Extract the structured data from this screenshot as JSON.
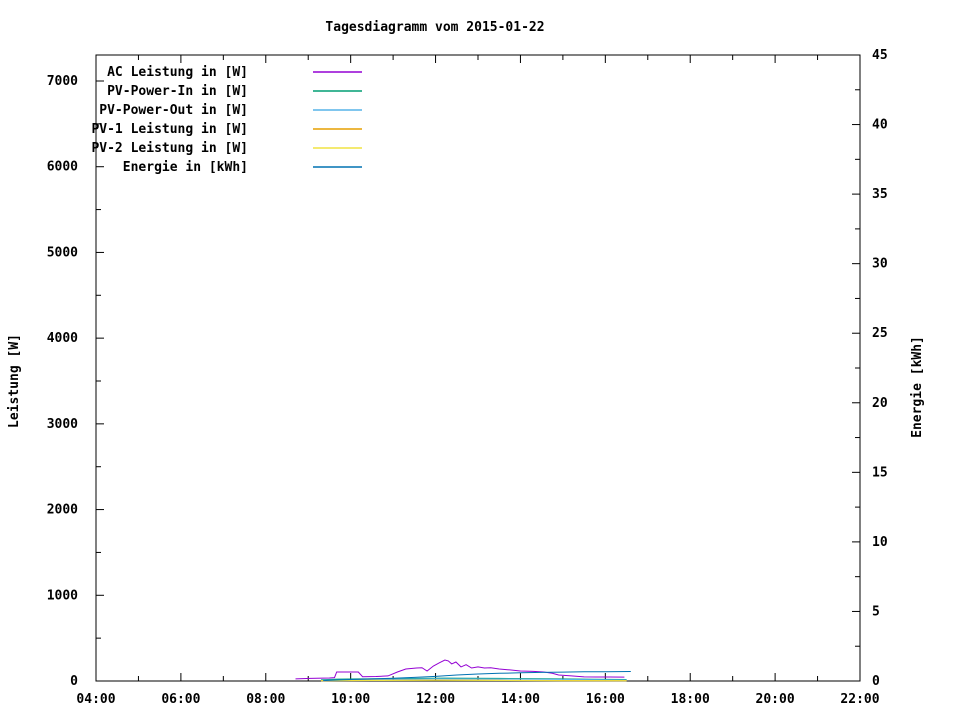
{
  "title": "Tagesdiagramm vom 2015-01-22",
  "axes": {
    "y_left_label": "Leistung [W]",
    "y_right_label": "Energie [kWh]",
    "x_tick_labels": [
      "04:00",
      "06:00",
      "08:00",
      "10:00",
      "12:00",
      "14:00",
      "16:00",
      "18:00",
      "20:00",
      "22:00"
    ],
    "y_left_tick_labels": [
      "0",
      "1000",
      "2000",
      "3000",
      "4000",
      "5000",
      "6000",
      "7000"
    ],
    "y_right_tick_labels": [
      "0",
      "5",
      "10",
      "15",
      "20",
      "25",
      "30",
      "35",
      "40",
      "45"
    ]
  },
  "legend": {
    "entries": [
      {
        "label": "AC Leistung in [W]",
        "color": "#9400D3"
      },
      {
        "label": "PV-Power-In in [W]",
        "color": "#009E73"
      },
      {
        "label": "PV-Power-Out in [W]",
        "color": "#56B4E9"
      },
      {
        "label": "PV-1 Leistung in [W]",
        "color": "#E69F00"
      },
      {
        "label": "PV-2 Leistung in [W]",
        "color": "#F0E442"
      },
      {
        "label": "Energie in [kWh]",
        "color": "#0072B2"
      }
    ]
  },
  "chart_data": {
    "type": "line",
    "title": "Tagesdiagramm vom 2015-01-22",
    "xlabel": "",
    "ylabel": "Leistung [W]",
    "y2label": "Energie [kWh]",
    "x_hours_range": [
      4,
      22
    ],
    "x_major_step_hours": 2,
    "x_minor_step_hours": 1,
    "ylim_left": [
      0,
      7300
    ],
    "y_left_major_step": 1000,
    "y_left_minor_step": 500,
    "ylim_right": [
      0,
      45
    ],
    "y_right_major_step": 5,
    "y_right_minor_step": 2.5,
    "grid": false,
    "legend_position": "top-left-inside",
    "series": [
      {
        "name": "AC Leistung in [W]",
        "axis": "left",
        "unit": "W",
        "color": "#9400D3",
        "points": [
          [
            8.7,
            25
          ],
          [
            9.05,
            30
          ],
          [
            9.5,
            35
          ],
          [
            9.62,
            40
          ],
          [
            9.67,
            105
          ],
          [
            10.18,
            105
          ],
          [
            10.28,
            50
          ],
          [
            10.6,
            52
          ],
          [
            10.88,
            60
          ],
          [
            11.1,
            105
          ],
          [
            11.3,
            140
          ],
          [
            11.55,
            152
          ],
          [
            11.68,
            155
          ],
          [
            11.8,
            117
          ],
          [
            11.95,
            175
          ],
          [
            12.1,
            215
          ],
          [
            12.22,
            245
          ],
          [
            12.3,
            235
          ],
          [
            12.38,
            200
          ],
          [
            12.48,
            222
          ],
          [
            12.6,
            165
          ],
          [
            12.72,
            190
          ],
          [
            12.85,
            152
          ],
          [
            13.0,
            165
          ],
          [
            13.15,
            152
          ],
          [
            13.3,
            155
          ],
          [
            13.5,
            140
          ],
          [
            13.75,
            130
          ],
          [
            14.0,
            117
          ],
          [
            14.3,
            112
          ],
          [
            14.55,
            105
          ],
          [
            14.75,
            90
          ],
          [
            14.9,
            70
          ],
          [
            15.2,
            60
          ],
          [
            15.5,
            48
          ],
          [
            15.8,
            47
          ],
          [
            16.1,
            47
          ],
          [
            16.45,
            46
          ]
        ]
      },
      {
        "name": "PV-Power-In in [W]",
        "axis": "left",
        "unit": "W",
        "color": "#009E73",
        "points": [
          [
            9.3,
            14
          ],
          [
            9.7,
            22
          ],
          [
            10.2,
            24
          ],
          [
            11.0,
            28
          ],
          [
            11.6,
            30
          ],
          [
            12.2,
            34
          ],
          [
            12.8,
            32
          ],
          [
            13.5,
            30
          ],
          [
            14.2,
            28
          ],
          [
            15.0,
            24
          ],
          [
            15.7,
            20
          ],
          [
            16.5,
            17
          ]
        ]
      },
      {
        "name": "PV-Power-Out in [W]",
        "axis": "left",
        "unit": "W",
        "color": "#56B4E9",
        "points": [
          [
            9.3,
            9
          ],
          [
            10.0,
            16
          ],
          [
            11.0,
            21
          ],
          [
            12.0,
            26
          ],
          [
            12.8,
            25
          ],
          [
            13.6,
            23
          ],
          [
            14.5,
            20
          ],
          [
            15.3,
            17
          ],
          [
            16.5,
            12
          ]
        ]
      },
      {
        "name": "PV-1 Leistung in [W]",
        "axis": "left",
        "unit": "W",
        "color": "#E69F00",
        "points": [
          [
            9.3,
            5
          ],
          [
            10.5,
            8
          ],
          [
            12.0,
            11
          ],
          [
            13.5,
            8
          ],
          [
            15.0,
            6
          ],
          [
            16.5,
            5
          ]
        ]
      },
      {
        "name": "PV-2 Leistung in [W]",
        "axis": "left",
        "unit": "W",
        "color": "#F0E442",
        "points": [
          [
            9.3,
            4
          ],
          [
            10.5,
            6
          ],
          [
            12.0,
            8
          ],
          [
            13.5,
            6
          ],
          [
            15.0,
            4
          ],
          [
            16.5,
            3
          ]
        ]
      },
      {
        "name": "Energie in [kWh]",
        "axis": "right",
        "unit": "kWh",
        "color": "#0072B2",
        "points": [
          [
            9.35,
            0.03
          ],
          [
            9.75,
            0.08
          ],
          [
            10.2,
            0.12
          ],
          [
            10.6,
            0.16
          ],
          [
            11.0,
            0.2
          ],
          [
            11.5,
            0.26
          ],
          [
            12.0,
            0.33
          ],
          [
            12.5,
            0.43
          ],
          [
            13.0,
            0.5
          ],
          [
            13.5,
            0.55
          ],
          [
            14.0,
            0.59
          ],
          [
            14.5,
            0.62
          ],
          [
            15.0,
            0.64
          ],
          [
            15.5,
            0.66
          ],
          [
            16.0,
            0.67
          ],
          [
            16.6,
            0.68
          ]
        ]
      }
    ]
  }
}
